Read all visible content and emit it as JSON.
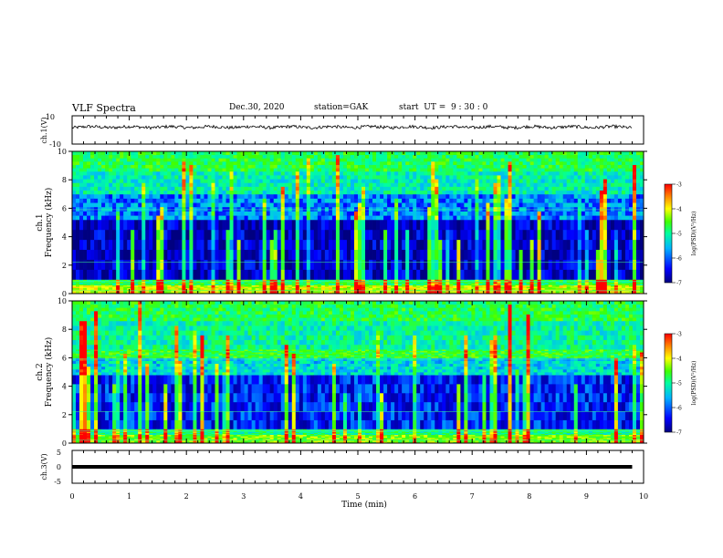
{
  "header": {
    "title": "VLF Spectra",
    "date": "Dec.30, 2020",
    "station": "station=GAK",
    "start": "start  UT =  9 : 30 : 0"
  },
  "chart_data": [
    {
      "type": "line",
      "panel": "ch1-waveform",
      "ylabel": "ch.1(V)",
      "ylim": [
        -10,
        10
      ],
      "y_tick_labels": [
        "10",
        "-10"
      ],
      "x_range_min": [
        0,
        10
      ],
      "description_level": "waveform fluctuating around ~2 V"
    },
    {
      "type": "heatmap",
      "panel": "ch1-spectrogram",
      "title": "ch.1",
      "ylabel": "Frequency (kHz)",
      "ylim": [
        0,
        10
      ],
      "y_ticks": [
        0,
        2,
        4,
        6,
        8,
        10
      ],
      "colorbar": {
        "label": "log(PSD)(V²/Hz)",
        "range": [
          -7,
          -3
        ],
        "ticks": [
          -3,
          -4,
          -5,
          -6,
          -7
        ]
      },
      "bands": [
        {
          "f_low": 0.0,
          "f_high": 0.6,
          "level": -4.3
        },
        {
          "f_low": 0.6,
          "f_high": 1.0,
          "level": -5.0
        },
        {
          "f_low": 1.0,
          "f_high": 5.2,
          "level": -6.7
        },
        {
          "f_low": 5.2,
          "f_high": 7.0,
          "level": -6.0
        },
        {
          "f_low": 7.0,
          "f_high": 8.6,
          "level": -5.4
        },
        {
          "f_low": 8.6,
          "f_high": 10.0,
          "level": -5.0
        }
      ]
    },
    {
      "type": "heatmap",
      "panel": "ch2-spectrogram",
      "title": "ch.2",
      "ylabel": "Frequency (kHz)",
      "ylim": [
        0,
        10
      ],
      "y_ticks": [
        0,
        2,
        4,
        6,
        8,
        10
      ],
      "colorbar": {
        "label": "log(PSD)(V²/Hz)",
        "range": [
          -7,
          -3
        ],
        "ticks": [
          -3,
          -4,
          -5,
          -6,
          -7
        ]
      },
      "bands": [
        {
          "f_low": 0.0,
          "f_high": 0.6,
          "level": -4.6
        },
        {
          "f_low": 0.6,
          "f_high": 1.0,
          "level": -5.2
        },
        {
          "f_low": 1.0,
          "f_high": 4.8,
          "level": -6.4
        },
        {
          "f_low": 4.8,
          "f_high": 6.0,
          "level": -5.6
        },
        {
          "f_low": 6.0,
          "f_high": 6.6,
          "level": -4.9
        },
        {
          "f_low": 6.6,
          "f_high": 8.6,
          "level": -5.3
        },
        {
          "f_low": 8.6,
          "f_high": 10.0,
          "level": -5.0
        }
      ]
    },
    {
      "type": "line",
      "panel": "ch3-waveform",
      "ylabel": "ch.3(V)",
      "ylim": [
        -5,
        5
      ],
      "y_tick_labels": [
        "5",
        "0",
        "-5"
      ],
      "constant_value": 0,
      "x_range_min": [
        0,
        9.8
      ]
    }
  ],
  "x_axis": {
    "label": "Time  (min)",
    "ticks": [
      "0",
      "1",
      "2",
      "3",
      "4",
      "5",
      "6",
      "7",
      "8",
      "9",
      "10"
    ]
  },
  "colors": {
    "colormap": [
      "#000080",
      "#0000ff",
      "#00b4ff",
      "#00ffa0",
      "#40ff00",
      "#ffff00",
      "#ff8000",
      "#ff0000"
    ]
  }
}
